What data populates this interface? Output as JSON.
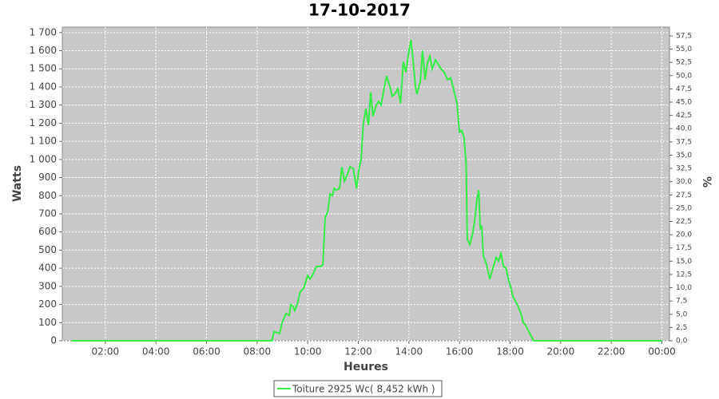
{
  "chart_data": {
    "type": "line",
    "title": "17-10-2017",
    "xlabel": "Heures",
    "ylabel": "Watts",
    "y2label": "%",
    "x": [
      0.67,
      8.58,
      8.67,
      8.89,
      8.99,
      9.14,
      9.27,
      9.33,
      9.42,
      9.49,
      9.58,
      9.71,
      9.84,
      10.0,
      10.09,
      10.19,
      10.34,
      10.53,
      10.6,
      10.69,
      10.79,
      10.88,
      10.98,
      11.04,
      11.13,
      11.26,
      11.35,
      11.45,
      11.55,
      11.67,
      11.8,
      11.93,
      12.02,
      12.11,
      12.2,
      12.3,
      12.4,
      12.49,
      12.58,
      12.71,
      12.8,
      12.9,
      13.03,
      13.12,
      13.25,
      13.34,
      13.44,
      13.56,
      13.67,
      13.78,
      13.88,
      13.98,
      14.08,
      14.17,
      14.26,
      14.32,
      14.45,
      14.54,
      14.64,
      14.73,
      14.83,
      14.92,
      15.05,
      15.14,
      15.27,
      15.4,
      15.53,
      15.65,
      15.78,
      15.9,
      16.0,
      16.09,
      16.18,
      16.26,
      16.31,
      16.41,
      16.5,
      16.6,
      16.69,
      16.76,
      16.82,
      16.88,
      16.94,
      17.07,
      17.2,
      17.32,
      17.45,
      17.54,
      17.64,
      17.74,
      17.84,
      17.93,
      18.02,
      18.12,
      18.21,
      18.31,
      18.43,
      18.52,
      18.6,
      18.74,
      18.93,
      24.0
    ],
    "series": [
      {
        "name": "Toiture 2925 Wc( 8,452 kWh )",
        "color": "#33ee44",
        "values": [
          0,
          0,
          50,
          40,
          100,
          150,
          140,
          200,
          190,
          165,
          200,
          270,
          290,
          360,
          340,
          360,
          410,
          410,
          420,
          680,
          710,
          810,
          800,
          840,
          830,
          840,
          960,
          880,
          910,
          960,
          950,
          840,
          940,
          1000,
          1200,
          1280,
          1190,
          1370,
          1240,
          1300,
          1320,
          1300,
          1400,
          1460,
          1400,
          1350,
          1360,
          1390,
          1310,
          1540,
          1480,
          1580,
          1660,
          1540,
          1400,
          1360,
          1430,
          1600,
          1440,
          1530,
          1570,
          1500,
          1550,
          1530,
          1500,
          1480,
          1440,
          1450,
          1380,
          1310,
          1150,
          1160,
          1120,
          980,
          560,
          530,
          580,
          660,
          780,
          830,
          620,
          630,
          470,
          420,
          340,
          400,
          460,
          440,
          480,
          410,
          400,
          340,
          300,
          240,
          220,
          190,
          150,
          100,
          90,
          50,
          0,
          0
        ]
      }
    ],
    "xlim": [
      0.3,
      24.3
    ],
    "xticks": [
      {
        "value": 2,
        "label": "02:00"
      },
      {
        "value": 4,
        "label": "04:00"
      },
      {
        "value": 6,
        "label": "06:00"
      },
      {
        "value": 8,
        "label": "08:00"
      },
      {
        "value": 10,
        "label": "10:00"
      },
      {
        "value": 12,
        "label": "12:00"
      },
      {
        "value": 14,
        "label": "14:00"
      },
      {
        "value": 16,
        "label": "16:00"
      },
      {
        "value": 18,
        "label": "18:00"
      },
      {
        "value": 20,
        "label": "20:00"
      },
      {
        "value": 22,
        "label": "22:00"
      },
      {
        "value": 24,
        "label": "00:00"
      }
    ],
    "ylim": [
      0,
      1730
    ],
    "yticks": [
      0,
      100,
      200,
      300,
      400,
      500,
      600,
      700,
      800,
      900,
      {
        "value": 1000,
        "label": "1 000"
      },
      {
        "value": 1100,
        "label": "1 100"
      },
      {
        "value": 1200,
        "label": "1 200"
      },
      {
        "value": 1300,
        "label": "1 300"
      },
      {
        "value": 1400,
        "label": "1 400"
      },
      {
        "value": 1500,
        "label": "1 500"
      },
      {
        "value": 1600,
        "label": "1 600"
      },
      {
        "value": 1700,
        "label": "1 700"
      }
    ],
    "y2lim": [
      0,
      59.15
    ],
    "y2ticks": [
      {
        "value": 0,
        "label": "0,0"
      },
      {
        "value": 2.5,
        "label": "2,5"
      },
      {
        "value": 5,
        "label": "5,0"
      },
      {
        "value": 7.5,
        "label": "7,5"
      },
      {
        "value": 10,
        "label": "10,0"
      },
      {
        "value": 12.5,
        "label": "12,5"
      },
      {
        "value": 15,
        "label": "15,0"
      },
      {
        "value": 17.5,
        "label": "17,5"
      },
      {
        "value": 20,
        "label": "20,0"
      },
      {
        "value": 22.5,
        "label": "22,5"
      },
      {
        "value": 25,
        "label": "25,0"
      },
      {
        "value": 27.5,
        "label": "27,5"
      },
      {
        "value": 30,
        "label": "30,0"
      },
      {
        "value": 32.5,
        "label": "32,5"
      },
      {
        "value": 35,
        "label": "35,0"
      },
      {
        "value": 37.5,
        "label": "37,5"
      },
      {
        "value": 40,
        "label": "40,0"
      },
      {
        "value": 42.5,
        "label": "42,5"
      },
      {
        "value": 45,
        "label": "45,0"
      },
      {
        "value": 47.5,
        "label": "47,5"
      },
      {
        "value": 50,
        "label": "50,0"
      },
      {
        "value": 52.5,
        "label": "52,5"
      },
      {
        "value": 55,
        "label": "55,0"
      },
      {
        "value": 57.5,
        "label": "57,5"
      }
    ],
    "grid": true
  }
}
